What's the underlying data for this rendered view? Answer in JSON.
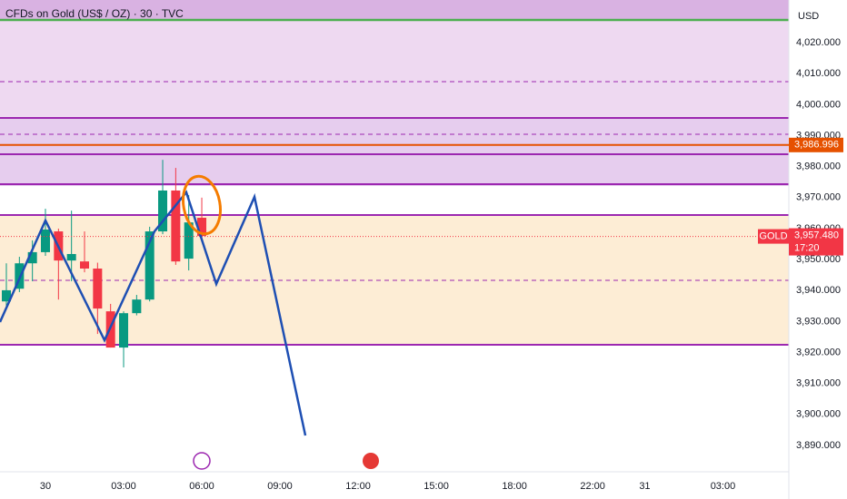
{
  "chart_data": {
    "type": "candlestick",
    "title": "CFDs on Gold (US$ / OZ) · 30 · TVC",
    "currency": "USD",
    "x": [
      -1.5,
      -1,
      -0.5,
      0,
      0.5,
      1,
      1.5,
      2,
      2.5,
      3,
      3.5,
      4,
      4.5,
      5,
      5.5,
      6
    ],
    "open": [
      3936.5,
      3940.6,
      3948.8,
      3952.4,
      3959.1,
      3949.7,
      3949.4,
      3947.1,
      3933.3,
      3921.6,
      3932.7,
      3937.1,
      3959.1,
      3972.3,
      3950.3,
      3963.5
    ],
    "high": [
      3948.8,
      3950.9,
      3956.2,
      3966.4,
      3960.0,
      3965.8,
      3959.1,
      3949.0,
      3935.7,
      3933.3,
      3938.6,
      3960.6,
      3982.2,
      3979.6,
      3970.8,
      3970.0
    ],
    "low": [
      3934.2,
      3939.5,
      3943.0,
      3951.2,
      3937.1,
      3943.0,
      3945.9,
      3926.0,
      3921.6,
      3915.2,
      3932.0,
      3936.5,
      3958.2,
      3948.3,
      3946.5,
      3957.0
    ],
    "close": [
      3940.1,
      3948.8,
      3952.4,
      3959.7,
      3949.7,
      3951.8,
      3947.1,
      3934.2,
      3921.6,
      3932.7,
      3937.1,
      3959.1,
      3972.3,
      3949.4,
      3962.0,
      3957.6
    ],
    "up_color": "#089981",
    "down_color": "#f23645",
    "xlim": [
      -1.744,
      28.53
    ],
    "xticks": [
      {
        "value": 0,
        "label": "30"
      },
      {
        "value": 3,
        "label": "03:00"
      },
      {
        "value": 6,
        "label": "06:00"
      },
      {
        "value": 9,
        "label": "09:00"
      },
      {
        "value": 12,
        "label": "12:00"
      },
      {
        "value": 15,
        "label": "15:00"
      },
      {
        "value": 18,
        "label": "18:00"
      },
      {
        "value": 21,
        "label": "22:00"
      },
      {
        "value": 23,
        "label": "31"
      },
      {
        "value": 26,
        "label": "03:00"
      }
    ],
    "ylim": [
      3881.5,
      4033.8
    ],
    "yticks": [
      {
        "value": 3890,
        "label": "3,890.000"
      },
      {
        "value": 3900,
        "label": "3,900.000"
      },
      {
        "value": 3910,
        "label": "3,910.000"
      },
      {
        "value": 3920,
        "label": "3,920.000"
      },
      {
        "value": 3930,
        "label": "3,930.000"
      },
      {
        "value": 3940,
        "label": "3,940.000"
      },
      {
        "value": 3950,
        "label": "3,950.000"
      },
      {
        "value": 3960,
        "label": "3,960.000"
      },
      {
        "value": 3970,
        "label": "3,970.000"
      },
      {
        "value": 3980,
        "label": "3,980.000"
      },
      {
        "value": 3990,
        "label": "3,990.000"
      },
      {
        "value": 4000,
        "label": "4,000.000"
      },
      {
        "value": 4010,
        "label": "4,010.000"
      },
      {
        "value": 4020,
        "label": "4,020.000"
      }
    ],
    "marker_price": {
      "value": 3986.996,
      "label": "3,986.996"
    },
    "last_price": {
      "value": 3957.48,
      "label": "3,957.480"
    },
    "countdown": "17:20",
    "symbol": "GOLD"
  }
}
